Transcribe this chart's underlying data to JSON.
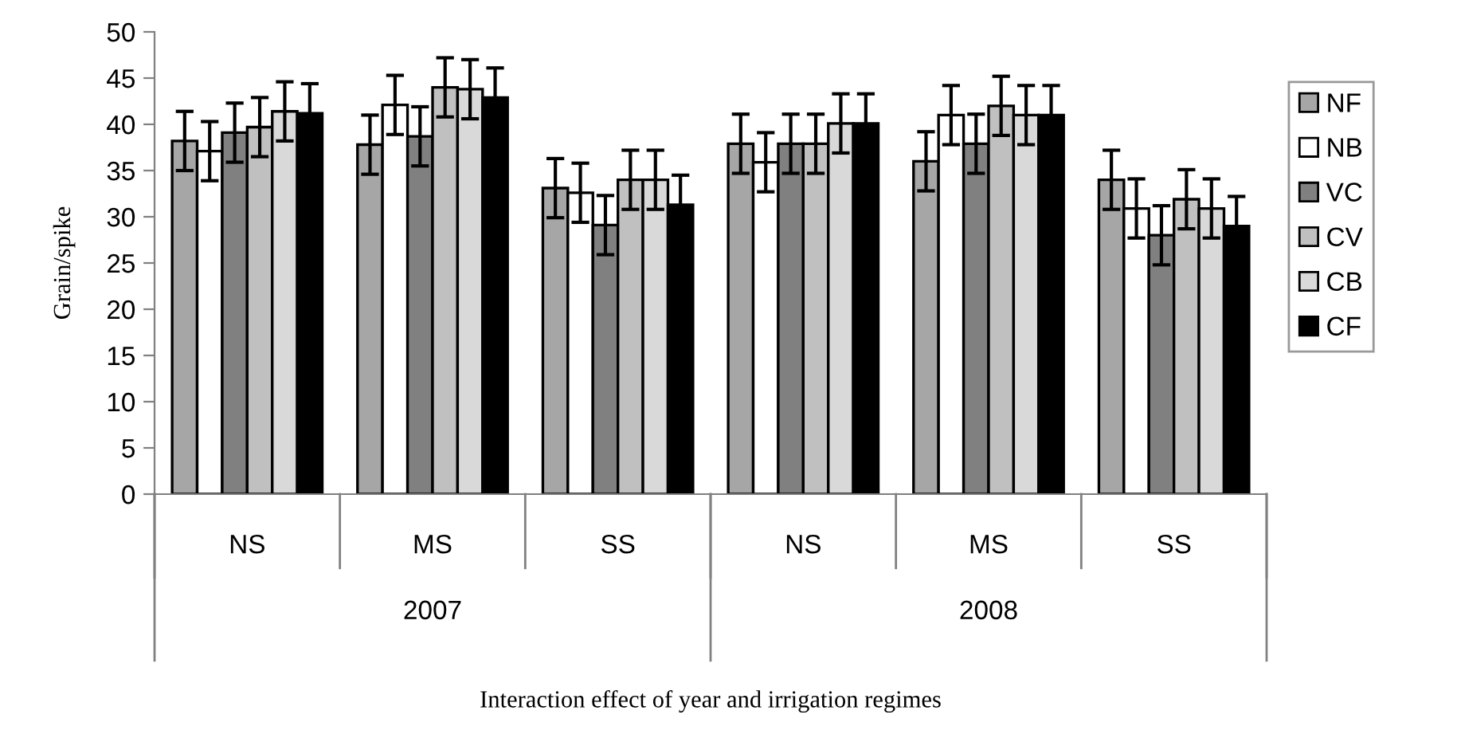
{
  "chart_data": {
    "type": "bar",
    "ylabel": "Grain/spike",
    "categories": [
      "NS",
      "MS",
      "SS",
      "NS",
      "MS",
      "SS"
    ],
    "annotations": [
      "2007",
      "2008",
      "Interaction effect of year and irrigation regimes"
    ],
    "series": [
      {
        "name": "NF",
        "color": "#a6a6a6",
        "values": [
          38.2,
          37.8,
          33.1,
          37.9,
          36.0,
          34.0
        ],
        "errors": [
          3.2,
          3.2,
          3.2,
          3.2,
          3.2,
          3.2
        ]
      },
      {
        "name": "NB",
        "color": "#ffffff",
        "values": [
          37.1,
          42.1,
          32.6,
          35.9,
          41.0,
          30.9
        ],
        "errors": [
          3.2,
          3.2,
          3.2,
          3.2,
          3.2,
          3.2
        ]
      },
      {
        "name": "VC",
        "color": "#808080",
        "values": [
          39.1,
          38.7,
          29.1,
          37.9,
          37.9,
          28.0
        ],
        "errors": [
          3.2,
          3.2,
          3.2,
          3.2,
          3.2,
          3.2
        ]
      },
      {
        "name": "CV",
        "color": "#c0c0c0",
        "values": [
          39.7,
          44.0,
          34.0,
          37.9,
          42.0,
          31.9
        ],
        "errors": [
          3.2,
          3.2,
          3.2,
          3.2,
          3.2,
          3.2
        ]
      },
      {
        "name": "CB",
        "color": "#d9d9d9",
        "values": [
          41.4,
          43.8,
          34.0,
          40.1,
          41.0,
          30.9
        ],
        "errors": [
          3.2,
          3.2,
          3.2,
          3.2,
          3.2,
          3.2
        ]
      },
      {
        "name": "CF",
        "color": "#000000",
        "values": [
          41.2,
          42.9,
          31.3,
          40.1,
          41.0,
          29.0
        ],
        "errors": [
          3.2,
          3.2,
          3.2,
          3.2,
          3.2,
          3.2
        ]
      }
    ],
    "ylim": [
      0,
      50
    ],
    "yticks": [
      0,
      5,
      10,
      15,
      20,
      25,
      30,
      35,
      40,
      45,
      50
    ],
    "grid": false,
    "legend": "right"
  }
}
